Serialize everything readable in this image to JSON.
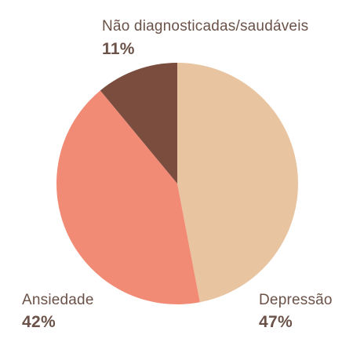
{
  "chart_data": {
    "type": "pie",
    "title": "",
    "slices": [
      {
        "label": "Depressão",
        "value": 47,
        "value_label": "47%",
        "color": "#e8c4a0"
      },
      {
        "label": "Ansiedade",
        "value": 42,
        "value_label": "42%",
        "color": "#f28b76"
      },
      {
        "label": "Não diagnosticadas/saudáveis",
        "value": 11,
        "value_label": "11%",
        "color": "#7a4d3e"
      }
    ],
    "start_angle_deg": 0,
    "direction": "clockwise",
    "legend": "none",
    "label_color": "#6b5248"
  }
}
